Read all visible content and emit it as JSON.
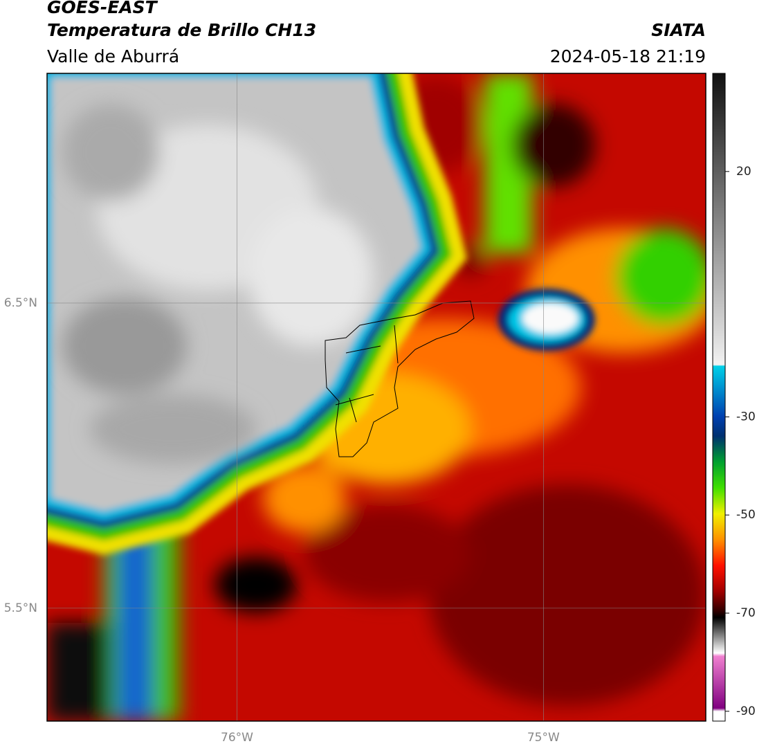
{
  "header": {
    "title": "GOES-EAST",
    "subtitle": "Temperatura de Brillo CH13",
    "region": "Valle de Aburrá",
    "source": "SIATA",
    "timestamp": "2024-05-18 21:19"
  },
  "map": {
    "xlim": [
      -76.62,
      -74.47
    ],
    "ylim": [
      5.13,
      7.253
    ],
    "xticks": [
      {
        "value": -76,
        "label": "76°W"
      },
      {
        "value": -75,
        "label": "75°W"
      }
    ],
    "yticks": [
      {
        "value": 5.5,
        "label": "5.5°N"
      },
      {
        "value": 6.5,
        "label": "6.5°N"
      }
    ],
    "grid": true
  },
  "colorbar": {
    "clim": [
      -92,
      40
    ],
    "ticks": [
      -90,
      -70,
      -50,
      -30,
      20
    ]
  }
}
